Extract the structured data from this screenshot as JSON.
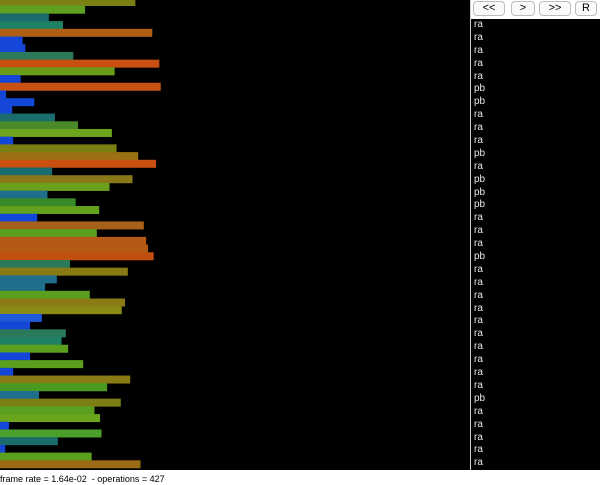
{
  "controls": {
    "back_all": "<<",
    "forward": ">",
    "forward_all": ">>",
    "reset": "R"
  },
  "bars": [
    {
      "value": 0.288,
      "color": "#7c8014"
    },
    {
      "value": 0.181,
      "color": "#5fa01e"
    },
    {
      "value": 0.104,
      "color": "#1b6d6d"
    },
    {
      "value": 0.134,
      "color": "#1e8064"
    },
    {
      "value": 0.324,
      "color": "#b05f14"
    },
    {
      "value": 0.048,
      "color": "#1446d8"
    },
    {
      "value": 0.054,
      "color": "#1446d8"
    },
    {
      "value": 0.156,
      "color": "#2a7a5a"
    },
    {
      "value": 0.339,
      "color": "#c85010"
    },
    {
      "value": 0.244,
      "color": "#6a9a1a"
    },
    {
      "value": 0.044,
      "color": "#1446d8"
    },
    {
      "value": 0.342,
      "color": "#c85010"
    },
    {
      "value": 0.013,
      "color": "#1446d8"
    },
    {
      "value": 0.073,
      "color": "#1446d8"
    },
    {
      "value": 0.026,
      "color": "#1446d8"
    },
    {
      "value": 0.117,
      "color": "#1b6d6d"
    },
    {
      "value": 0.166,
      "color": "#4a8a2a"
    },
    {
      "value": 0.238,
      "color": "#6ea41c"
    },
    {
      "value": 0.028,
      "color": "#1446d8"
    },
    {
      "value": 0.248,
      "color": "#7c8014"
    },
    {
      "value": 0.294,
      "color": "#9a7014"
    },
    {
      "value": 0.332,
      "color": "#c85010"
    },
    {
      "value": 0.111,
      "color": "#1b6d6d"
    },
    {
      "value": 0.282,
      "color": "#8a7818"
    },
    {
      "value": 0.233,
      "color": "#6aa01c"
    },
    {
      "value": 0.101,
      "color": "#1e6e8c"
    },
    {
      "value": 0.161,
      "color": "#3a8a2a"
    },
    {
      "value": 0.211,
      "color": "#62a01e"
    },
    {
      "value": 0.079,
      "color": "#1446d8"
    },
    {
      "value": 0.306,
      "color": "#a6621a"
    },
    {
      "value": 0.206,
      "color": "#5aa01e"
    },
    {
      "value": 0.311,
      "color": "#b45a14"
    },
    {
      "value": 0.315,
      "color": "#b45a14"
    },
    {
      "value": 0.327,
      "color": "#c04f10"
    },
    {
      "value": 0.149,
      "color": "#2a7a5a"
    },
    {
      "value": 0.272,
      "color": "#8a7a14"
    },
    {
      "value": 0.121,
      "color": "#1e6e8c"
    },
    {
      "value": 0.096,
      "color": "#1e6e8c"
    },
    {
      "value": 0.191,
      "color": "#5aa01e"
    },
    {
      "value": 0.266,
      "color": "#8a7a14"
    },
    {
      "value": 0.259,
      "color": "#8a8a14"
    },
    {
      "value": 0.089,
      "color": "#1e5ad8"
    },
    {
      "value": 0.064,
      "color": "#1446d8"
    },
    {
      "value": 0.14,
      "color": "#2a7a5a"
    },
    {
      "value": 0.131,
      "color": "#1e8064"
    },
    {
      "value": 0.145,
      "color": "#5aa01e"
    },
    {
      "value": 0.064,
      "color": "#1446d8"
    },
    {
      "value": 0.177,
      "color": "#5aa01e"
    },
    {
      "value": 0.028,
      "color": "#1446d8"
    },
    {
      "value": 0.277,
      "color": "#8a7a14"
    },
    {
      "value": 0.228,
      "color": "#4a9a22"
    },
    {
      "value": 0.083,
      "color": "#1e6e8c"
    },
    {
      "value": 0.257,
      "color": "#7c8014"
    },
    {
      "value": 0.201,
      "color": "#5aa01e"
    },
    {
      "value": 0.213,
      "color": "#6aa41c"
    },
    {
      "value": 0.019,
      "color": "#1446d8"
    },
    {
      "value": 0.216,
      "color": "#4aa02a"
    },
    {
      "value": 0.123,
      "color": "#1b6d6d"
    },
    {
      "value": 0.011,
      "color": "#1446d8"
    },
    {
      "value": 0.195,
      "color": "#5aa01e"
    },
    {
      "value": 0.299,
      "color": "#9a6a14"
    }
  ],
  "log": [
    "ra",
    "ra",
    "ra",
    "ra",
    "ra",
    "pb",
    "pb",
    "ra",
    "ra",
    "ra",
    "pb",
    "ra",
    "pb",
    "pb",
    "pb",
    "ra",
    "ra",
    "ra",
    "pb",
    "ra",
    "ra",
    "ra",
    "ra",
    "ra",
    "ra",
    "ra",
    "ra",
    "ra",
    "ra",
    "pb",
    "ra",
    "ra",
    "ra",
    "ra",
    "ra",
    "ra"
  ],
  "status": {
    "text": "frame rate = 1.64e-02  - operations = 427"
  }
}
